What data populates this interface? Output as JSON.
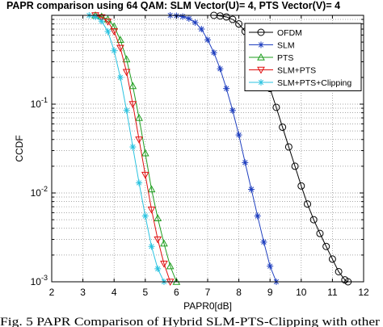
{
  "caption": "Fig. 5 PAPR Comparison of Hybrid SLM-PTS-Clipping with other",
  "chart_data": {
    "type": "line",
    "title": "PAPR comparison using 64 QAM: SLM Vector(U)= 4, PTS Vector(V)= 4",
    "xlabel": "PAPR0[dB]",
    "ylabel": "CCDF",
    "xlim": [
      2,
      12
    ],
    "ylim": [
      0.001,
      1
    ],
    "yscale": "log",
    "grid": true,
    "legend_position": "top-right",
    "x_ticks": [
      "2",
      "3",
      "4",
      "5",
      "6",
      "7",
      "8",
      "9",
      "10",
      "11",
      "12"
    ],
    "y_ticks": [
      {
        "value": 0.001,
        "base": "10",
        "exp": "-3"
      },
      {
        "value": 0.01,
        "base": "10",
        "exp": "-2"
      },
      {
        "value": 0.1,
        "base": "10",
        "exp": "-1"
      }
    ],
    "series": [
      {
        "name": "OFDM",
        "color": "#000000",
        "marker": "circle",
        "x": [
          7.2,
          7.4,
          7.6,
          7.8,
          8.0,
          8.2,
          8.4,
          8.6,
          8.8,
          9.0,
          9.2,
          9.4,
          9.6,
          9.8,
          10.0,
          10.2,
          10.4,
          10.6,
          10.8,
          11.0,
          11.2,
          11.4,
          11.5
        ],
        "y": [
          1,
          0.985,
          0.96,
          0.9,
          0.8,
          0.66,
          0.5,
          0.36,
          0.24,
          0.15,
          0.092,
          0.055,
          0.033,
          0.02,
          0.012,
          0.0075,
          0.005,
          0.0035,
          0.0025,
          0.0018,
          0.0013,
          0.00105,
          0.001
        ]
      },
      {
        "name": "SLM",
        "color": "#1f3fbf",
        "marker": "star",
        "x": [
          5.8,
          6.0,
          6.2,
          6.4,
          6.6,
          6.8,
          7.0,
          7.2,
          7.4,
          7.6,
          7.8,
          8.0,
          8.2,
          8.4,
          8.6,
          8.8,
          9.0,
          9.2
        ],
        "y": [
          1,
          0.99,
          0.97,
          0.92,
          0.83,
          0.7,
          0.53,
          0.38,
          0.25,
          0.15,
          0.085,
          0.045,
          0.022,
          0.011,
          0.0055,
          0.0028,
          0.0015,
          0.001
        ]
      },
      {
        "name": "PTS",
        "color": "#1e9e1e",
        "marker": "triangle-up",
        "x": [
          3.4,
          3.6,
          3.8,
          4.0,
          4.2,
          4.4,
          4.6,
          4.8,
          5.0,
          5.2,
          5.4,
          5.6,
          5.8,
          6.0
        ],
        "y": [
          1,
          0.97,
          0.9,
          0.75,
          0.53,
          0.32,
          0.16,
          0.07,
          0.028,
          0.011,
          0.0052,
          0.0027,
          0.0015,
          0.001
        ]
      },
      {
        "name": "SLM+PTS",
        "color": "#e01010",
        "marker": "triangle-down",
        "x": [
          3.4,
          3.6,
          3.8,
          4.0,
          4.2,
          4.4,
          4.6,
          4.8,
          5.0,
          5.2,
          5.4,
          5.6,
          5.8
        ],
        "y": [
          1,
          0.95,
          0.85,
          0.66,
          0.43,
          0.23,
          0.1,
          0.04,
          0.016,
          0.0065,
          0.003,
          0.0016,
          0.001
        ]
      },
      {
        "name": "SLM+PTS+Clipping",
        "color": "#2bc3e0",
        "marker": "star",
        "x": [
          3.2,
          3.4,
          3.6,
          3.8,
          4.0,
          4.2,
          4.4,
          4.6,
          4.8,
          5.0,
          5.2,
          5.4,
          5.6
        ],
        "y": [
          1,
          0.96,
          0.86,
          0.66,
          0.4,
          0.2,
          0.085,
          0.033,
          0.013,
          0.0055,
          0.0025,
          0.0014,
          0.001
        ]
      }
    ]
  }
}
